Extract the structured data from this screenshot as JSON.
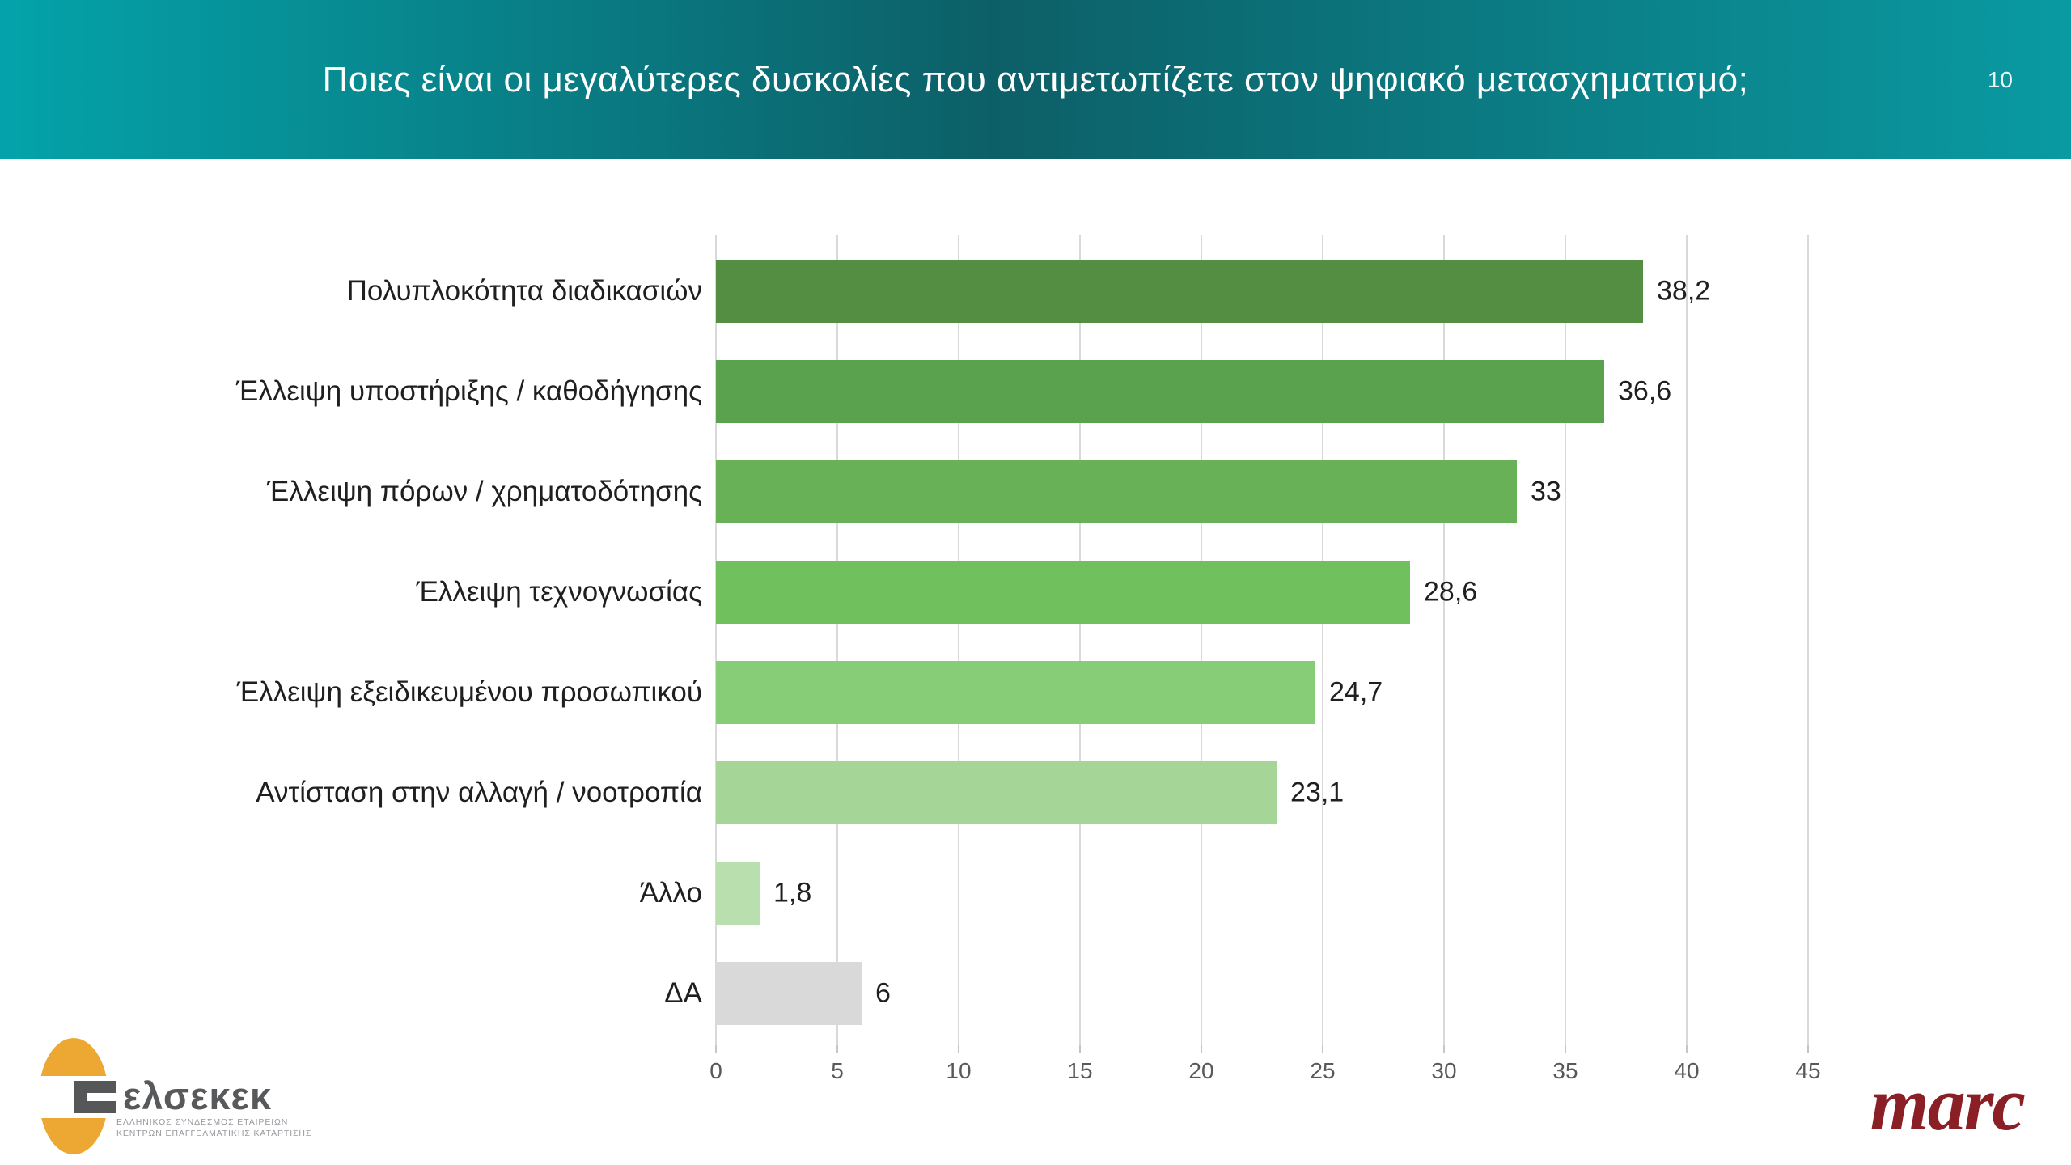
{
  "header": {
    "title": "Ποιες είναι οι μεγαλύτερες δυσκολίες που αντιμετωπίζετε στον ψηφιακό μετασχηματισμό;",
    "page_number": "10",
    "gradient": {
      "left": "#04a3aa",
      "center": "#0d5f67",
      "right": "#0a9aa2"
    }
  },
  "chart_data": {
    "type": "bar",
    "orientation": "horizontal",
    "title": "Ποιες είναι οι μεγαλύτερες δυσκολίες που αντιμετωπίζετε στον ψηφιακό μετασχηματισμό;",
    "categories": [
      "Πολυπλοκότητα διαδικασιών",
      "Έλλειψη υποστήριξης / καθοδήγησης",
      "Έλλειψη πόρων / χρηματοδότησης",
      "Έλλειψη τεχνογνωσίας",
      "Έλλειψη εξειδικευμένου προσωπικού",
      "Αντίσταση στην αλλαγή / νοοτροπία",
      "Άλλο",
      "ΔΑ"
    ],
    "values": [
      38.2,
      36.6,
      33,
      28.6,
      24.7,
      23.1,
      1.8,
      6
    ],
    "value_labels": [
      "38,2",
      "36,6",
      "33",
      "28,6",
      "24,7",
      "23,1",
      "1,8",
      "6"
    ],
    "bar_colors": [
      "#548e42",
      "#5ba24e",
      "#68b156",
      "#70c05e",
      "#87cd78",
      "#a5d698",
      "#b9dfae",
      "#d9d9d9"
    ],
    "x_ticks": [
      0,
      5,
      10,
      15,
      20,
      25,
      30,
      35,
      40,
      45
    ],
    "x_tick_labels": [
      "0",
      "5",
      "10",
      "15",
      "20",
      "25",
      "30",
      "35",
      "40",
      "45"
    ],
    "xlim": [
      0,
      45
    ],
    "grid": "vertical",
    "gridline_color": "#d9d9d9",
    "legend": "none"
  },
  "footer": {
    "elsekek": {
      "wordmark": "ελσεκεκ",
      "caption_line1": "ΕΛΛΗΝΙΚΟΣ ΣΥΝΔΕΣΜΟΣ ΕΤΑΙΡΕΙΩΝ",
      "caption_line2": "ΚΕΝΤΡΩΝ ΕΠΑΓΓΕΛΜΑΤΙΚΗΣ ΚΑΤΑΡΤΙΣΗΣ",
      "orange": "#eca833",
      "gray": "#58595b"
    },
    "marc": {
      "wordmark": "marc",
      "color": "#8a1f26"
    }
  }
}
